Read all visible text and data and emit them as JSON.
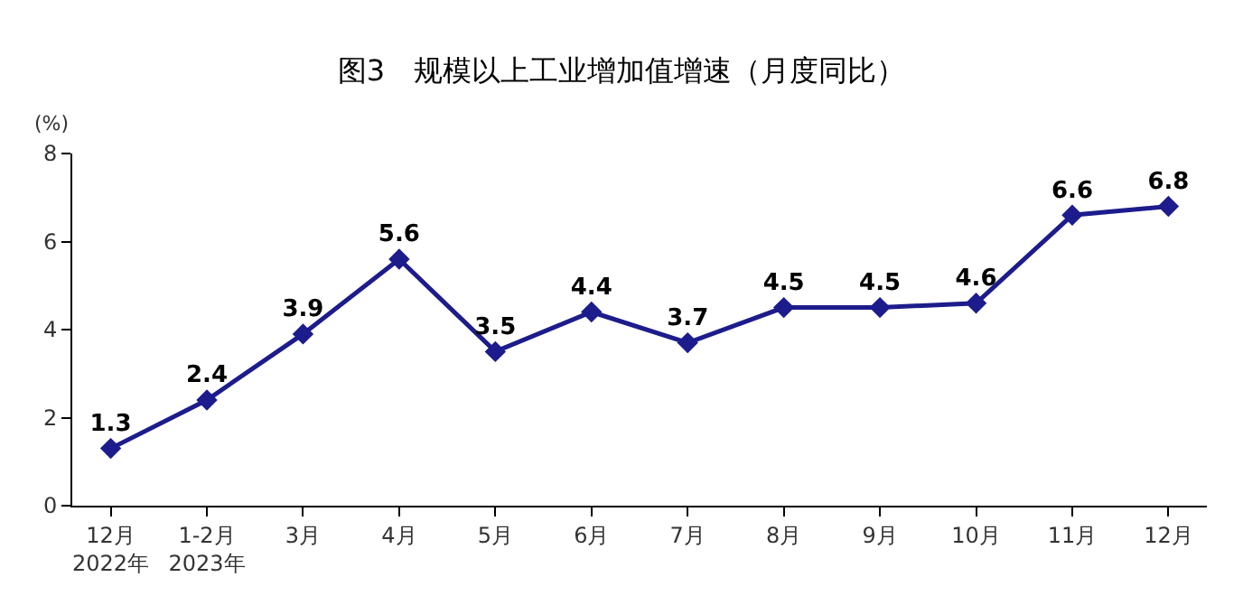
{
  "chart_data": {
    "type": "line",
    "title": "图3　规模以上工业增加值增速（月度同比）",
    "ylabel": "(%)",
    "categories": [
      "12月\n2022年",
      "1-2月\n2023年",
      "3月",
      "4月",
      "5月",
      "6月",
      "7月",
      "8月",
      "9月",
      "10月",
      "11月",
      "12月"
    ],
    "series": [
      {
        "color": "#1c1c8c",
        "values": [
          1.3,
          2.4,
          3.9,
          5.6,
          3.5,
          4.4,
          3.7,
          4.5,
          4.5,
          4.6,
          6.6,
          6.8
        ]
      }
    ],
    "ylim": [
      0,
      8
    ],
    "yticks": [
      0,
      2,
      4,
      6,
      8
    ],
    "marker": "diamond",
    "line_style": "solid",
    "data_labels": true
  }
}
